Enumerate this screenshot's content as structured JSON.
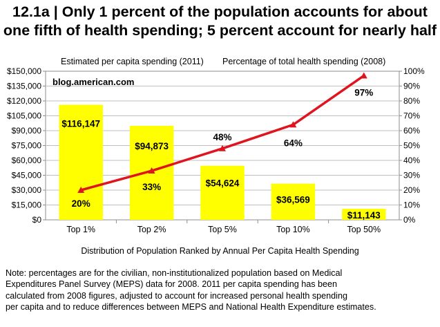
{
  "title_lines": [
    "12.1a | Only 1 percent of the population accounts for about",
    "one fifth of health spending; 5 percent account for nearly half"
  ],
  "note_lines": [
    "Note: percentages are for the civilian, non-institutionalized population based on Medical",
    "Expenditures Panel Survey (MEPS) data for 2008.  2011 per capita spending has been",
    "calculated from 2008 figures, adjusted to account for increased personal health spending",
    "per capita and to reduce differences between MEPS and National Health Expenditure estimates."
  ],
  "watermark": "blog.american.com",
  "colors": {
    "bar": "#ffff00",
    "line": "#e0141e",
    "grid": "#bfbfbf"
  },
  "chart_data": {
    "type": "bar",
    "title": "12.1a | Only 1 percent of the population accounts for about one fifth of health spending; 5 percent account for nearly half",
    "xlabel": "Distribution of Population Ranked by Annual Per Capita Health Spending",
    "ylabel": "Estimated per capita spending (2011)",
    "y2label": "Percentage of total health spending (2008)",
    "categories": [
      "Top 1%",
      "Top 2%",
      "Top 5%",
      "Top 10%",
      "Top 50%"
    ],
    "series": [
      {
        "name": "Estimated per capita spending (2011)",
        "type": "bar",
        "axis": "left",
        "values": [
          116147,
          94873,
          54624,
          36569,
          11143
        ],
        "labels": [
          "$116,147",
          "$94,873",
          "$54,624",
          "$36,569",
          "$11,143"
        ]
      },
      {
        "name": "Percentage of total health spending (2008)",
        "type": "line",
        "axis": "right",
        "values": [
          20,
          33,
          48,
          64,
          97
        ],
        "labels": [
          "20%",
          "33%",
          "48%",
          "64%",
          "97%"
        ]
      }
    ],
    "ylim": [
      0,
      150000
    ],
    "yticks": [
      0,
      15000,
      30000,
      45000,
      60000,
      75000,
      90000,
      105000,
      120000,
      135000,
      150000
    ],
    "ytick_labels": [
      "$0",
      "$15,000",
      "$30,000",
      "$45,000",
      "$60,000",
      "$75,000",
      "$90,000",
      "$105,000",
      "$120,000",
      "$135,000",
      "$150,000"
    ],
    "y2lim": [
      0,
      100
    ],
    "y2ticks": [
      0,
      10,
      20,
      30,
      40,
      50,
      60,
      70,
      80,
      90,
      100
    ],
    "y2tick_labels": [
      "0%",
      "10%",
      "20%",
      "30%",
      "40%",
      "50%",
      "60%",
      "70%",
      "80%",
      "90%",
      "100%"
    ],
    "grid": true,
    "legend": "none"
  }
}
